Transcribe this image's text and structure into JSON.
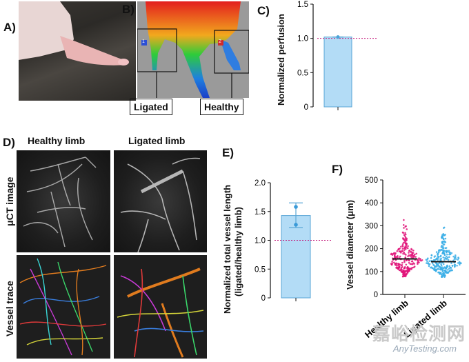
{
  "panels": {
    "a": {
      "letter": "A)"
    },
    "b": {
      "letter": "B)",
      "box1_num": "1",
      "box2_num": "2",
      "ligated": "Ligated",
      "healthy": "Healthy"
    },
    "c": {
      "letter": "C)",
      "ylabel": "Normalized perfusion",
      "yticks": [
        "0",
        "0.5",
        "1.0",
        "1.5"
      ],
      "value": 1.02,
      "ylim": [
        0,
        1.5
      ],
      "reference": 1.0
    },
    "d": {
      "letter": "D)",
      "col1": "Healthy limb",
      "col2": "Ligated limb",
      "row1": "μCT image",
      "row2": "Vessel trace"
    },
    "e": {
      "letter": "E)",
      "ylabel": "Normalized total vessel length (ligated/healthy limb)",
      "ylabel1": "Normalized total vessel length",
      "ylabel2": "(ligated/healthy limb)",
      "yticks": [
        "0",
        "0.5",
        "1.0",
        "1.5",
        "2.0"
      ],
      "value": 1.43,
      "points": [
        1.27,
        1.58
      ],
      "err": [
        1.22,
        1.65
      ],
      "ylim": [
        0,
        2.0
      ],
      "reference": 1.0
    },
    "f": {
      "letter": "F)",
      "ylabel": "Vessel diameter (μm)",
      "yticks": [
        "0",
        "100",
        "200",
        "300",
        "400",
        "500"
      ],
      "categories": [
        "Healthy limb",
        "Ligated limb"
      ],
      "medians": [
        155,
        143
      ],
      "ylim": [
        0,
        500
      ]
    }
  },
  "colors": {
    "bar": "#b3dcf6",
    "barEdge": "#5aa6d6",
    "ref": "#c2187a",
    "healthy": "#e0157a",
    "ligated": "#3aaee6"
  },
  "watermark": {
    "cn": "嘉峪检测网",
    "en": "AnyTesting.com"
  }
}
